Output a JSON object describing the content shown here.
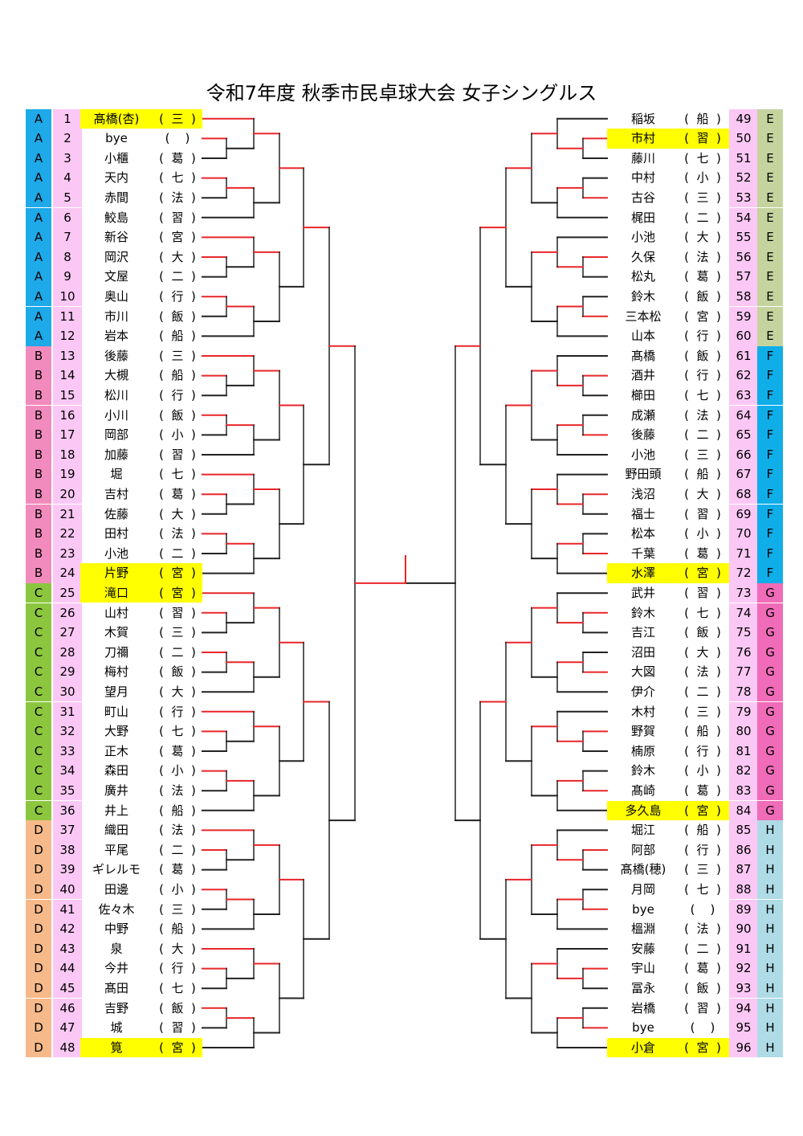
{
  "title": "令和7年度 秋季市民卓球大会 女子シングルス",
  "colors": {
    "A": "#1ea9e9",
    "B": "#f28bbd",
    "C": "#8cc63f",
    "D": "#f6b98a",
    "E": "#c5d49e",
    "F": "#10aee9",
    "G": "#f06bb8",
    "H": "#aedbe6",
    "number_bg": "#fbc8f5",
    "highlight": "#ffff00",
    "line_red": "#e8262a",
    "line_black": "#222222"
  },
  "left": [
    {
      "block": "A",
      "num": "1",
      "name": "髙橋(杏)",
      "aff": "三",
      "hl": true
    },
    {
      "block": "A",
      "num": "2",
      "name": "bye",
      "aff": ""
    },
    {
      "block": "A",
      "num": "3",
      "name": "小櫃",
      "aff": "葛"
    },
    {
      "block": "A",
      "num": "4",
      "name": "天内",
      "aff": "七"
    },
    {
      "block": "A",
      "num": "5",
      "name": "赤間",
      "aff": "法"
    },
    {
      "block": "A",
      "num": "6",
      "name": "鮫島",
      "aff": "習"
    },
    {
      "block": "A",
      "num": "7",
      "name": "新谷",
      "aff": "宮"
    },
    {
      "block": "A",
      "num": "8",
      "name": "岡沢",
      "aff": "大"
    },
    {
      "block": "A",
      "num": "9",
      "name": "文屋",
      "aff": "二"
    },
    {
      "block": "A",
      "num": "10",
      "name": "奥山",
      "aff": "行"
    },
    {
      "block": "A",
      "num": "11",
      "name": "市川",
      "aff": "飯"
    },
    {
      "block": "A",
      "num": "12",
      "name": "岩本",
      "aff": "船"
    },
    {
      "block": "B",
      "num": "13",
      "name": "後藤",
      "aff": "三"
    },
    {
      "block": "B",
      "num": "14",
      "name": "大槻",
      "aff": "船"
    },
    {
      "block": "B",
      "num": "15",
      "name": "松川",
      "aff": "行"
    },
    {
      "block": "B",
      "num": "16",
      "name": "小川",
      "aff": "飯"
    },
    {
      "block": "B",
      "num": "17",
      "name": "岡部",
      "aff": "小"
    },
    {
      "block": "B",
      "num": "18",
      "name": "加藤",
      "aff": "習"
    },
    {
      "block": "B",
      "num": "19",
      "name": "堀",
      "aff": "七"
    },
    {
      "block": "B",
      "num": "20",
      "name": "吉村",
      "aff": "葛"
    },
    {
      "block": "B",
      "num": "21",
      "name": "佐藤",
      "aff": "大"
    },
    {
      "block": "B",
      "num": "22",
      "name": "田村",
      "aff": "法"
    },
    {
      "block": "B",
      "num": "23",
      "name": "小池",
      "aff": "二"
    },
    {
      "block": "B",
      "num": "24",
      "name": "片野",
      "aff": "宮",
      "hl": true
    },
    {
      "block": "C",
      "num": "25",
      "name": "滝口",
      "aff": "宮",
      "hl": true
    },
    {
      "block": "C",
      "num": "26",
      "name": "山村",
      "aff": "習"
    },
    {
      "block": "C",
      "num": "27",
      "name": "木賀",
      "aff": "三"
    },
    {
      "block": "C",
      "num": "28",
      "name": "刀禰",
      "aff": "二"
    },
    {
      "block": "C",
      "num": "29",
      "name": "梅村",
      "aff": "飯"
    },
    {
      "block": "C",
      "num": "30",
      "name": "望月",
      "aff": "大"
    },
    {
      "block": "C",
      "num": "31",
      "name": "町山",
      "aff": "行"
    },
    {
      "block": "C",
      "num": "32",
      "name": "大野",
      "aff": "七"
    },
    {
      "block": "C",
      "num": "33",
      "name": "正木",
      "aff": "葛"
    },
    {
      "block": "C",
      "num": "34",
      "name": "森田",
      "aff": "小"
    },
    {
      "block": "C",
      "num": "35",
      "name": "廣井",
      "aff": "法"
    },
    {
      "block": "C",
      "num": "36",
      "name": "井上",
      "aff": "船"
    },
    {
      "block": "D",
      "num": "37",
      "name": "織田",
      "aff": "法"
    },
    {
      "block": "D",
      "num": "38",
      "name": "平尾",
      "aff": "二"
    },
    {
      "block": "D",
      "num": "39",
      "name": "ギレルモ",
      "aff": "葛"
    },
    {
      "block": "D",
      "num": "40",
      "name": "田邊",
      "aff": "小"
    },
    {
      "block": "D",
      "num": "41",
      "name": "佐々木",
      "aff": "三"
    },
    {
      "block": "D",
      "num": "42",
      "name": "中野",
      "aff": "船"
    },
    {
      "block": "D",
      "num": "43",
      "name": "泉",
      "aff": "大"
    },
    {
      "block": "D",
      "num": "44",
      "name": "今井",
      "aff": "行"
    },
    {
      "block": "D",
      "num": "45",
      "name": "髙田",
      "aff": "七"
    },
    {
      "block": "D",
      "num": "46",
      "name": "吉野",
      "aff": "飯"
    },
    {
      "block": "D",
      "num": "47",
      "name": "城",
      "aff": "習"
    },
    {
      "block": "D",
      "num": "48",
      "name": "筧",
      "aff": "宮",
      "hl": true
    }
  ],
  "right": [
    {
      "block": "E",
      "num": "49",
      "name": "稲坂",
      "aff": "船"
    },
    {
      "block": "E",
      "num": "50",
      "name": "市村",
      "aff": "習",
      "hl": true
    },
    {
      "block": "E",
      "num": "51",
      "name": "藤川",
      "aff": "七"
    },
    {
      "block": "E",
      "num": "52",
      "name": "中村",
      "aff": "小"
    },
    {
      "block": "E",
      "num": "53",
      "name": "古谷",
      "aff": "三"
    },
    {
      "block": "E",
      "num": "54",
      "name": "梶田",
      "aff": "二"
    },
    {
      "block": "E",
      "num": "55",
      "name": "小池",
      "aff": "大"
    },
    {
      "block": "E",
      "num": "56",
      "name": "久保",
      "aff": "法"
    },
    {
      "block": "E",
      "num": "57",
      "name": "松丸",
      "aff": "葛"
    },
    {
      "block": "E",
      "num": "58",
      "name": "鈴木",
      "aff": "飯"
    },
    {
      "block": "E",
      "num": "59",
      "name": "三本松",
      "aff": "宮"
    },
    {
      "block": "E",
      "num": "60",
      "name": "山本",
      "aff": "行"
    },
    {
      "block": "F",
      "num": "61",
      "name": "髙橋",
      "aff": "飯"
    },
    {
      "block": "F",
      "num": "62",
      "name": "酒井",
      "aff": "行"
    },
    {
      "block": "F",
      "num": "63",
      "name": "櫛田",
      "aff": "七"
    },
    {
      "block": "F",
      "num": "64",
      "name": "成瀬",
      "aff": "法"
    },
    {
      "block": "F",
      "num": "65",
      "name": "後藤",
      "aff": "二"
    },
    {
      "block": "F",
      "num": "66",
      "name": "小池",
      "aff": "三"
    },
    {
      "block": "F",
      "num": "67",
      "name": "野田頭",
      "aff": "船"
    },
    {
      "block": "F",
      "num": "68",
      "name": "浅沼",
      "aff": "大"
    },
    {
      "block": "F",
      "num": "69",
      "name": "福士",
      "aff": "習"
    },
    {
      "block": "F",
      "num": "70",
      "name": "松本",
      "aff": "小"
    },
    {
      "block": "F",
      "num": "71",
      "name": "千葉",
      "aff": "葛"
    },
    {
      "block": "F",
      "num": "72",
      "name": "水澤",
      "aff": "宮",
      "hl": true
    },
    {
      "block": "G",
      "num": "73",
      "name": "武井",
      "aff": "習"
    },
    {
      "block": "G",
      "num": "74",
      "name": "鈴木",
      "aff": "七"
    },
    {
      "block": "G",
      "num": "75",
      "name": "吉江",
      "aff": "飯"
    },
    {
      "block": "G",
      "num": "76",
      "name": "沼田",
      "aff": "大"
    },
    {
      "block": "G",
      "num": "77",
      "name": "大図",
      "aff": "法"
    },
    {
      "block": "G",
      "num": "78",
      "name": "伊介",
      "aff": "二"
    },
    {
      "block": "G",
      "num": "79",
      "name": "木村",
      "aff": "三"
    },
    {
      "block": "G",
      "num": "80",
      "name": "野賀",
      "aff": "船"
    },
    {
      "block": "G",
      "num": "81",
      "name": "楠原",
      "aff": "行"
    },
    {
      "block": "G",
      "num": "82",
      "name": "鈴木",
      "aff": "小"
    },
    {
      "block": "G",
      "num": "83",
      "name": "髙崎",
      "aff": "葛"
    },
    {
      "block": "G",
      "num": "84",
      "name": "多久島",
      "aff": "宮",
      "hl": true
    },
    {
      "block": "H",
      "num": "85",
      "name": "堀江",
      "aff": "船"
    },
    {
      "block": "H",
      "num": "86",
      "name": "阿部",
      "aff": "行"
    },
    {
      "block": "H",
      "num": "87",
      "name": "髙橋(穂)",
      "aff": "三"
    },
    {
      "block": "H",
      "num": "88",
      "name": "月岡",
      "aff": "七"
    },
    {
      "block": "H",
      "num": "89",
      "name": "bye",
      "aff": ""
    },
    {
      "block": "H",
      "num": "90",
      "name": "榲淵",
      "aff": "法"
    },
    {
      "block": "H",
      "num": "91",
      "name": "安藤",
      "aff": "二"
    },
    {
      "block": "H",
      "num": "92",
      "name": "宇山",
      "aff": "葛"
    },
    {
      "block": "H",
      "num": "93",
      "name": "冨永",
      "aff": "飯"
    },
    {
      "block": "H",
      "num": "94",
      "name": "岩橋",
      "aff": "習"
    },
    {
      "block": "H",
      "num": "95",
      "name": "bye",
      "aff": ""
    },
    {
      "block": "H",
      "num": "96",
      "name": "小倉",
      "aff": "宮",
      "hl": true
    }
  ]
}
